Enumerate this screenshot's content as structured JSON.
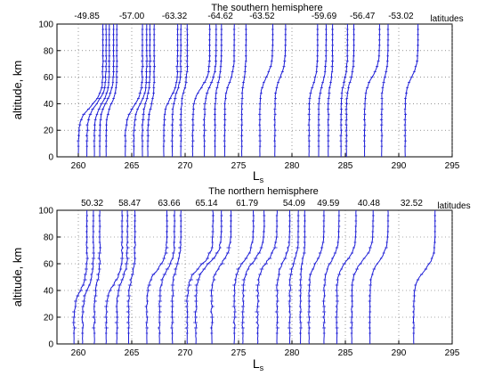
{
  "chart_data": [
    {
      "type": "line",
      "title": "The southern hemisphere",
      "xlabel": "L",
      "xlabel_sub": "s",
      "ylabel": "altitude, km",
      "xlim": [
        258,
        295
      ],
      "ylim": [
        0,
        100
      ],
      "xticks": [
        "260",
        "265",
        "270",
        "275",
        "280",
        "285",
        "290",
        "295"
      ],
      "yticks": [
        "0",
        "20",
        "40",
        "60",
        "80",
        "100"
      ],
      "grid": "dotted",
      "top_labels": [
        {
          "ls": 260.8,
          "text": "-49.85"
        },
        {
          "ls": 265.0,
          "text": "-57.00"
        },
        {
          "ls": 269.0,
          "text": "-63.32"
        },
        {
          "ls": 273.3,
          "text": "-64.62"
        },
        {
          "ls": 277.2,
          "text": "-63.52"
        },
        {
          "ls": 283.0,
          "text": "-59.69"
        },
        {
          "ls": 286.6,
          "text": "-56.47"
        },
        {
          "ls": 290.2,
          "text": "-53.02"
        }
      ],
      "top_legend": "latitudes",
      "profiles": [
        {
          "top_ls": 262.3,
          "bottom_ls": 260.0,
          "knee_km": 38,
          "noise": 0.3
        },
        {
          "top_ls": 262.6,
          "bottom_ls": 260.8,
          "knee_km": 40,
          "noise": 0.3
        },
        {
          "top_ls": 262.9,
          "bottom_ls": 261.5,
          "knee_km": 40,
          "noise": 0.2
        },
        {
          "top_ls": 263.3,
          "bottom_ls": 262.0,
          "knee_km": 42,
          "noise": 0.2
        },
        {
          "top_ls": 263.6,
          "bottom_ls": 262.6,
          "knee_km": 40,
          "noise": 0.2
        },
        {
          "top_ls": 266.0,
          "bottom_ls": 264.4,
          "knee_km": 38,
          "noise": 0.3
        },
        {
          "top_ls": 266.4,
          "bottom_ls": 265.2,
          "knee_km": 40,
          "noise": 0.3
        },
        {
          "top_ls": 266.7,
          "bottom_ls": 266.0,
          "knee_km": 42,
          "noise": 0.3
        },
        {
          "top_ls": 267.1,
          "bottom_ls": 266.5,
          "knee_km": 38,
          "noise": 0.2
        },
        {
          "top_ls": 269.3,
          "bottom_ls": 268.0,
          "knee_km": 45,
          "noise": 0.3
        },
        {
          "top_ls": 269.6,
          "bottom_ls": 268.8,
          "knee_km": 48,
          "noise": 0.3
        },
        {
          "top_ls": 270.2,
          "bottom_ls": 269.6,
          "knee_km": 50,
          "noise": 0.3
        },
        {
          "top_ls": 272.3,
          "bottom_ls": 270.7,
          "knee_km": 52,
          "noise": 0.3
        },
        {
          "top_ls": 272.9,
          "bottom_ls": 271.8,
          "knee_km": 54,
          "noise": 0.3
        },
        {
          "top_ls": 273.4,
          "bottom_ls": 272.8,
          "knee_km": 56,
          "noise": 0.2
        },
        {
          "top_ls": 274.6,
          "bottom_ls": 273.7,
          "knee_km": 56,
          "noise": 0.2
        },
        {
          "top_ls": 275.7,
          "bottom_ls": 275.3,
          "knee_km": 58,
          "noise": 0.2
        },
        {
          "top_ls": 278.2,
          "bottom_ls": 277.0,
          "knee_km": 60,
          "noise": 0.2
        },
        {
          "top_ls": 279.4,
          "bottom_ls": 278.4,
          "knee_km": 60,
          "noise": 0.2
        },
        {
          "top_ls": 282.4,
          "bottom_ls": 281.6,
          "knee_km": 55,
          "noise": 0.2
        },
        {
          "top_ls": 283.2,
          "bottom_ls": 282.5,
          "knee_km": 55,
          "noise": 0.2
        },
        {
          "top_ls": 283.8,
          "bottom_ls": 283.4,
          "knee_km": 55,
          "noise": 0.2
        },
        {
          "top_ls": 285.2,
          "bottom_ls": 284.6,
          "knee_km": 57,
          "noise": 0.2
        },
        {
          "top_ls": 285.8,
          "bottom_ls": 285.1,
          "knee_km": 57,
          "noise": 0.2
        },
        {
          "top_ls": 288.2,
          "bottom_ls": 286.8,
          "knee_km": 60,
          "noise": 0.2
        },
        {
          "top_ls": 289.0,
          "bottom_ls": 288.4,
          "knee_km": 60,
          "noise": 0.2
        },
        {
          "top_ls": 291.8,
          "bottom_ls": 290.6,
          "knee_km": 60,
          "noise": 0.2
        }
      ]
    },
    {
      "type": "line",
      "title": "The northern hemisphere",
      "xlabel": "L",
      "xlabel_sub": "s",
      "ylabel": "altitude, km",
      "xlim": [
        258,
        295
      ],
      "ylim": [
        0,
        100
      ],
      "xticks": [
        "260",
        "265",
        "270",
        "275",
        "280",
        "285",
        "290",
        "295"
      ],
      "yticks": [
        "0",
        "20",
        "40",
        "60",
        "80",
        "100"
      ],
      "grid": "dotted",
      "top_labels": [
        {
          "ls": 261.3,
          "text": "50.32"
        },
        {
          "ls": 264.8,
          "text": "58.47"
        },
        {
          "ls": 268.5,
          "text": "63.66"
        },
        {
          "ls": 272.0,
          "text": "65.14"
        },
        {
          "ls": 275.8,
          "text": "61.79"
        },
        {
          "ls": 280.2,
          "text": "54.09"
        },
        {
          "ls": 283.4,
          "text": "49.59"
        },
        {
          "ls": 287.2,
          "text": "40.48"
        },
        {
          "ls": 291.2,
          "text": "32.52"
        }
      ],
      "top_legend": "latitudes",
      "profiles": [
        {
          "top_ls": 260.8,
          "bottom_ls": 259.6,
          "knee_km": 40,
          "noise": 0.5
        },
        {
          "top_ls": 261.4,
          "bottom_ls": 260.4,
          "knee_km": 42,
          "noise": 0.5
        },
        {
          "top_ls": 262.0,
          "bottom_ls": 261.5,
          "knee_km": 45,
          "noise": 0.5
        },
        {
          "top_ls": 264.1,
          "bottom_ls": 262.6,
          "knee_km": 45,
          "noise": 0.5
        },
        {
          "top_ls": 264.6,
          "bottom_ls": 263.6,
          "knee_km": 48,
          "noise": 0.5
        },
        {
          "top_ls": 265.3,
          "bottom_ls": 264.7,
          "knee_km": 50,
          "noise": 0.5
        },
        {
          "top_ls": 268.3,
          "bottom_ls": 266.4,
          "knee_km": 55,
          "noise": 0.5
        },
        {
          "top_ls": 269.0,
          "bottom_ls": 267.6,
          "knee_km": 55,
          "noise": 0.5
        },
        {
          "top_ls": 269.6,
          "bottom_ls": 268.8,
          "knee_km": 58,
          "noise": 0.5
        },
        {
          "top_ls": 272.6,
          "bottom_ls": 270.2,
          "knee_km": 58,
          "noise": 0.6
        },
        {
          "top_ls": 273.4,
          "bottom_ls": 271.0,
          "knee_km": 60,
          "noise": 0.6
        },
        {
          "top_ls": 274.3,
          "bottom_ls": 272.5,
          "knee_km": 60,
          "noise": 0.6
        },
        {
          "top_ls": 276.4,
          "bottom_ls": 274.6,
          "knee_km": 62,
          "noise": 0.6
        },
        {
          "top_ls": 277.4,
          "bottom_ls": 275.4,
          "knee_km": 62,
          "noise": 0.6
        },
        {
          "top_ls": 278.6,
          "bottom_ls": 276.8,
          "knee_km": 62,
          "noise": 0.6
        },
        {
          "top_ls": 279.8,
          "bottom_ls": 278.6,
          "knee_km": 62,
          "noise": 0.5
        },
        {
          "top_ls": 280.6,
          "bottom_ls": 279.8,
          "knee_km": 62,
          "noise": 0.5
        },
        {
          "top_ls": 281.2,
          "bottom_ls": 280.8,
          "knee_km": 62,
          "noise": 0.4
        },
        {
          "top_ls": 283.0,
          "bottom_ls": 281.6,
          "knee_km": 62,
          "noise": 0.4
        },
        {
          "top_ls": 284.4,
          "bottom_ls": 283.0,
          "knee_km": 62,
          "noise": 0.4
        },
        {
          "top_ls": 286.0,
          "bottom_ls": 284.2,
          "knee_km": 62,
          "noise": 0.4
        },
        {
          "top_ls": 287.6,
          "bottom_ls": 285.6,
          "knee_km": 62,
          "noise": 0.4
        },
        {
          "top_ls": 289.0,
          "bottom_ls": 287.3,
          "knee_km": 62,
          "noise": 0.3
        },
        {
          "top_ls": 293.4,
          "bottom_ls": 291.4,
          "knee_km": 55,
          "noise": 0.3
        }
      ]
    }
  ],
  "colors": {
    "line": "#1c1cd6",
    "axis": "#000000",
    "grid": "#555555"
  }
}
